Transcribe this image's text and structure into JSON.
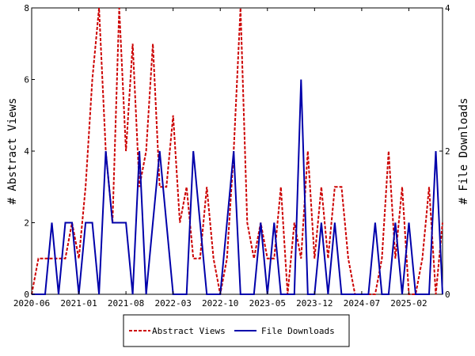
{
  "chart_data": {
    "type": "line",
    "x_tick_labels": [
      "2020-06",
      "2021-01",
      "2021-08",
      "2022-03",
      "2022-10",
      "2023-05",
      "2023-12",
      "2024-07",
      "2025-02"
    ],
    "y_left": {
      "label": "# Abstract Views",
      "lim": [
        0,
        8
      ],
      "ticks": [
        0,
        2,
        4,
        6,
        8
      ]
    },
    "y_right": {
      "label": "# File Downloads",
      "lim": [
        0,
        4
      ],
      "ticks": [
        0,
        2,
        4
      ]
    },
    "legend_position": "bottom",
    "grid": false,
    "series": [
      {
        "name": "Abstract Views",
        "axis": "left",
        "color": "#cc0000",
        "style": "dashed",
        "values": [
          0,
          1,
          1,
          1,
          1,
          1,
          2,
          1,
          3,
          6,
          8,
          4,
          2,
          8,
          4,
          7,
          3,
          4,
          7,
          3,
          3,
          5,
          2,
          3,
          1,
          1,
          3,
          1,
          0,
          1,
          4,
          8,
          2,
          1,
          2,
          1,
          1,
          3,
          0,
          2,
          1,
          4,
          1,
          3,
          1,
          3,
          3,
          1,
          0,
          0,
          0,
          0,
          1,
          4,
          1,
          3,
          0,
          0,
          1,
          3,
          0,
          2
        ]
      },
      {
        "name": "File Downloads",
        "axis": "right",
        "color": "#0000aa",
        "style": "solid",
        "values": [
          0,
          0,
          0,
          1,
          0,
          1,
          1,
          0,
          1,
          1,
          0,
          2,
          1,
          1,
          1,
          0,
          2,
          0,
          1,
          2,
          1,
          0,
          0,
          0,
          2,
          1,
          0,
          0,
          0,
          1,
          2,
          0,
          0,
          0,
          1,
          0,
          1,
          0,
          0,
          0,
          3,
          0,
          0,
          1,
          0,
          1,
          0,
          0,
          0,
          0,
          0,
          1,
          0,
          0,
          1,
          0,
          1,
          0,
          0,
          0,
          2,
          0
        ]
      }
    ]
  }
}
